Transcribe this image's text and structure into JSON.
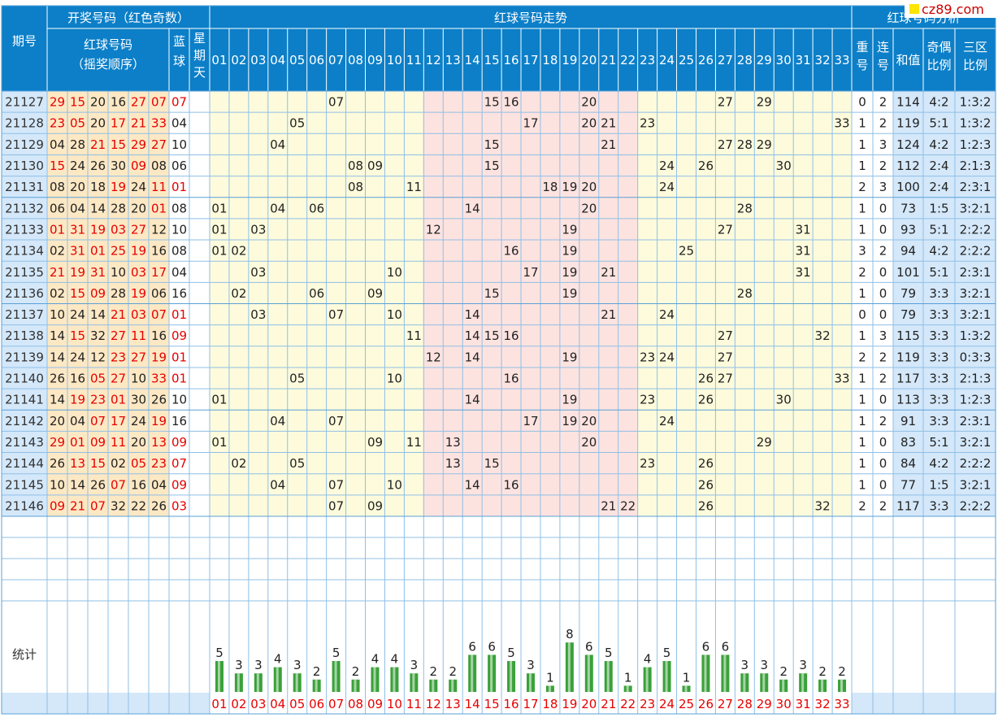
{
  "header": {
    "draw_title": "开奖号码（红色奇数）",
    "trend_title": "红球号码走势",
    "analysis_title": "红球号码分析",
    "period_col": "期号",
    "red_col_l1": "红球号码",
    "red_col_l2": "（摇奖顺序）",
    "blue_col": [
      "蓝",
      "球"
    ],
    "week_col": [
      "星",
      "期",
      "天"
    ],
    "repeat_col": [
      "重",
      "号"
    ],
    "consec_col": [
      "连",
      "号"
    ],
    "sum_col": "和值",
    "oddeven_col": [
      "奇偶",
      "比例"
    ],
    "zone_col": [
      "三区",
      "比例"
    ],
    "numbers": [
      "01",
      "02",
      "03",
      "04",
      "05",
      "06",
      "07",
      "08",
      "09",
      "10",
      "11",
      "12",
      "13",
      "14",
      "15",
      "16",
      "17",
      "18",
      "19",
      "20",
      "21",
      "22",
      "23",
      "24",
      "25",
      "26",
      "27",
      "28",
      "29",
      "30",
      "31",
      "32",
      "33"
    ]
  },
  "draws": [
    {
      "period": "21127",
      "red": [
        "29",
        "15",
        "20",
        "16",
        "27",
        "07"
      ],
      "blue": "07",
      "repeat": "0",
      "consec": "2",
      "sum": "114",
      "odd_even": "4:2",
      "zone": "1:3:2"
    },
    {
      "period": "21128",
      "red": [
        "23",
        "05",
        "20",
        "17",
        "21",
        "33"
      ],
      "blue": "04",
      "repeat": "1",
      "consec": "2",
      "sum": "119",
      "odd_even": "5:1",
      "zone": "1:3:2"
    },
    {
      "period": "21129",
      "red": [
        "04",
        "28",
        "21",
        "15",
        "29",
        "27"
      ],
      "blue": "10",
      "repeat": "1",
      "consec": "3",
      "sum": "124",
      "odd_even": "4:2",
      "zone": "1:2:3"
    },
    {
      "period": "21130",
      "red": [
        "15",
        "24",
        "26",
        "30",
        "09",
        "08"
      ],
      "blue": "06",
      "repeat": "1",
      "consec": "2",
      "sum": "112",
      "odd_even": "2:4",
      "zone": "2:1:3"
    },
    {
      "period": "21131",
      "red": [
        "08",
        "20",
        "18",
        "19",
        "24",
        "11"
      ],
      "blue": "01",
      "repeat": "2",
      "consec": "3",
      "sum": "100",
      "odd_even": "2:4",
      "zone": "2:3:1"
    },
    {
      "period": "21132",
      "red": [
        "06",
        "04",
        "14",
        "28",
        "20",
        "01"
      ],
      "blue": "08",
      "repeat": "1",
      "consec": "0",
      "sum": "73",
      "odd_even": "1:5",
      "zone": "3:2:1"
    },
    {
      "period": "21133",
      "red": [
        "01",
        "31",
        "19",
        "03",
        "27",
        "12"
      ],
      "blue": "10",
      "repeat": "1",
      "consec": "0",
      "sum": "93",
      "odd_even": "5:1",
      "zone": "2:2:2"
    },
    {
      "period": "21134",
      "red": [
        "02",
        "31",
        "01",
        "25",
        "19",
        "16"
      ],
      "blue": "08",
      "repeat": "3",
      "consec": "2",
      "sum": "94",
      "odd_even": "4:2",
      "zone": "2:2:2"
    },
    {
      "period": "21135",
      "red": [
        "21",
        "19",
        "31",
        "10",
        "03",
        "17"
      ],
      "blue": "04",
      "repeat": "2",
      "consec": "0",
      "sum": "101",
      "odd_even": "5:1",
      "zone": "2:3:1"
    },
    {
      "period": "21136",
      "red": [
        "02",
        "15",
        "09",
        "28",
        "19",
        "06"
      ],
      "blue": "16",
      "repeat": "1",
      "consec": "0",
      "sum": "79",
      "odd_even": "3:3",
      "zone": "3:2:1"
    },
    {
      "period": "21137",
      "red": [
        "10",
        "24",
        "14",
        "21",
        "03",
        "07"
      ],
      "blue": "01",
      "repeat": "0",
      "consec": "0",
      "sum": "79",
      "odd_even": "3:3",
      "zone": "3:2:1"
    },
    {
      "period": "21138",
      "red": [
        "14",
        "15",
        "32",
        "27",
        "11",
        "16"
      ],
      "blue": "09",
      "repeat": "1",
      "consec": "3",
      "sum": "115",
      "odd_even": "3:3",
      "zone": "1:3:2"
    },
    {
      "period": "21139",
      "red": [
        "14",
        "24",
        "12",
        "23",
        "27",
        "19"
      ],
      "blue": "01",
      "repeat": "2",
      "consec": "2",
      "sum": "119",
      "odd_even": "3:3",
      "zone": "0:3:3"
    },
    {
      "period": "21140",
      "red": [
        "26",
        "16",
        "05",
        "27",
        "10",
        "33"
      ],
      "blue": "01",
      "repeat": "1",
      "consec": "2",
      "sum": "117",
      "odd_even": "3:3",
      "zone": "2:1:3"
    },
    {
      "period": "21141",
      "red": [
        "14",
        "19",
        "23",
        "01",
        "30",
        "26"
      ],
      "blue": "10",
      "repeat": "1",
      "consec": "0",
      "sum": "113",
      "odd_even": "3:3",
      "zone": "1:2:3"
    },
    {
      "period": "21142",
      "red": [
        "20",
        "04",
        "07",
        "17",
        "24",
        "19"
      ],
      "blue": "16",
      "repeat": "1",
      "consec": "2",
      "sum": "91",
      "odd_even": "3:3",
      "zone": "2:3:1"
    },
    {
      "period": "21143",
      "red": [
        "29",
        "01",
        "09",
        "11",
        "20",
        "13"
      ],
      "blue": "09",
      "repeat": "1",
      "consec": "0",
      "sum": "83",
      "odd_even": "5:1",
      "zone": "3:2:1"
    },
    {
      "period": "21144",
      "red": [
        "26",
        "13",
        "15",
        "02",
        "05",
        "23"
      ],
      "blue": "07",
      "repeat": "1",
      "consec": "0",
      "sum": "84",
      "odd_even": "4:2",
      "zone": "2:2:2"
    },
    {
      "period": "21145",
      "red": [
        "10",
        "14",
        "26",
        "07",
        "16",
        "04"
      ],
      "blue": "09",
      "repeat": "1",
      "consec": "0",
      "sum": "77",
      "odd_even": "1:5",
      "zone": "3:2:1"
    },
    {
      "period": "21146",
      "red": [
        "09",
        "21",
        "07",
        "32",
        "22",
        "26"
      ],
      "blue": "03",
      "repeat": "2",
      "consec": "2",
      "sum": "117",
      "odd_even": "3:3",
      "zone": "2:2:2"
    }
  ],
  "stats_label": "统计",
  "chart_data": {
    "type": "bar",
    "categories": [
      "01",
      "02",
      "03",
      "04",
      "05",
      "06",
      "07",
      "08",
      "09",
      "10",
      "11",
      "12",
      "13",
      "14",
      "15",
      "16",
      "17",
      "18",
      "19",
      "20",
      "21",
      "22",
      "23",
      "24",
      "25",
      "26",
      "27",
      "28",
      "29",
      "30",
      "31",
      "32",
      "33"
    ],
    "values": [
      5,
      3,
      3,
      4,
      3,
      2,
      5,
      2,
      4,
      4,
      3,
      2,
      2,
      6,
      6,
      5,
      3,
      1,
      8,
      6,
      5,
      1,
      4,
      5,
      1,
      6,
      6,
      3,
      3,
      2,
      3,
      2,
      2
    ]
  },
  "colors": {
    "header_bg": "#0c7fc8",
    "header_text": "#ffffff",
    "grid_line": "#8fbfe6",
    "cell_light": "#fdfbdc",
    "cell_pink": "#fde3e0",
    "red_draw_bg": "#fde8c4",
    "side_blue": "#d4e8fa",
    "odd_red": "#e60000",
    "bar_green": "#3aa13a"
  },
  "logo": "cz89.com"
}
